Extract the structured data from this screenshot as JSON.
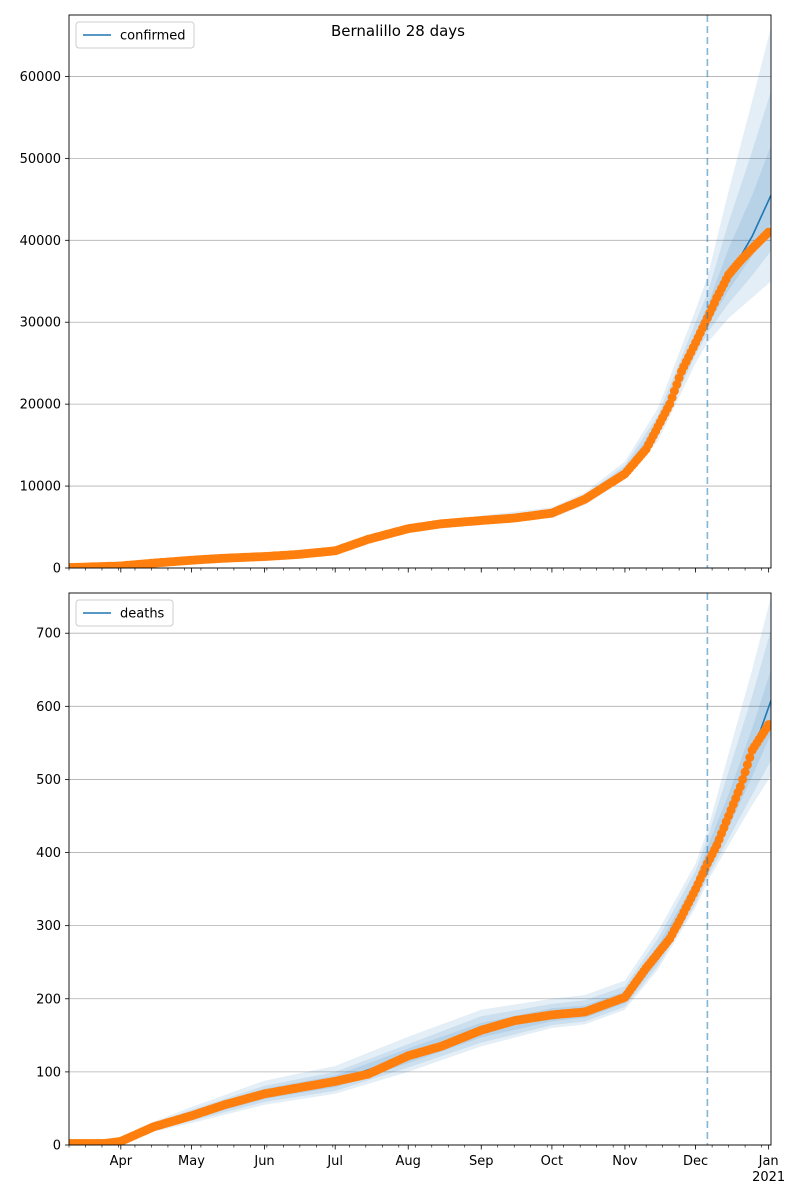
{
  "figure": {
    "title": "Bernalillo 28 days"
  },
  "chart_data": [
    {
      "type": "line",
      "legend": "confirmed",
      "legend_position": "top-left",
      "grid": "y",
      "ylim": [
        0,
        67500
      ],
      "yticks": [
        0,
        10000,
        20000,
        30000,
        40000,
        50000,
        60000
      ],
      "xticks": [
        {
          "date": "2020-04-01",
          "label": "Apr"
        },
        {
          "date": "2020-05-01",
          "label": "May"
        },
        {
          "date": "2020-06-01",
          "label": "Jun"
        },
        {
          "date": "2020-07-01",
          "label": "Jul"
        },
        {
          "date": "2020-08-01",
          "label": "Aug"
        },
        {
          "date": "2020-09-01",
          "label": "Sep"
        },
        {
          "date": "2020-10-01",
          "label": "Oct"
        },
        {
          "date": "2020-11-01",
          "label": "Nov"
        },
        {
          "date": "2020-12-01",
          "label": "Dec"
        },
        {
          "date": "2021-01-01",
          "label": "Jan\n2021"
        }
      ],
      "xlim": [
        "2020-03-10",
        "2021-01-02"
      ],
      "forecast_start": "2020-12-06",
      "observed": {
        "x": [
          "2020-03-10",
          "2020-04-01",
          "2020-04-15",
          "2020-05-01",
          "2020-05-15",
          "2020-06-01",
          "2020-06-15",
          "2020-07-01",
          "2020-07-15",
          "2020-08-01",
          "2020-08-15",
          "2020-09-01",
          "2020-09-15",
          "2020-10-01",
          "2020-10-15",
          "2020-11-01",
          "2020-11-10",
          "2020-11-20",
          "2020-11-25",
          "2020-12-01",
          "2020-12-06",
          "2020-12-10",
          "2020-12-15",
          "2020-12-20",
          "2020-12-25",
          "2021-01-01"
        ],
        "y": [
          50,
          250,
          600,
          950,
          1200,
          1400,
          1650,
          2100,
          3500,
          4800,
          5400,
          5800,
          6100,
          6700,
          8400,
          11500,
          14500,
          20000,
          24000,
          27500,
          30500,
          33000,
          35800,
          37500,
          39000,
          41000
        ]
      },
      "model": {
        "x": [
          "2020-03-10",
          "2020-04-01",
          "2020-05-01",
          "2020-06-01",
          "2020-07-01",
          "2020-07-15",
          "2020-08-01",
          "2020-09-01",
          "2020-10-01",
          "2020-10-15",
          "2020-11-01",
          "2020-11-15",
          "2020-12-01",
          "2020-12-06",
          "2020-12-15",
          "2020-12-25",
          "2021-01-02"
        ],
        "y": [
          50,
          250,
          950,
          1400,
          2100,
          3500,
          4800,
          5800,
          6700,
          8400,
          11700,
          17000,
          27500,
          30500,
          35500,
          40500,
          45500
        ]
      },
      "bands": [
        {
          "lower": [
            0,
            200,
            850,
            1250,
            1900,
            3200,
            4400,
            5300,
            6100,
            7700,
            10800,
            15500,
            25000,
            27500,
            30500,
            33000,
            35000
          ],
          "upper": [
            100,
            320,
            1100,
            1600,
            2400,
            3900,
            5300,
            6400,
            7400,
            9200,
            13000,
            19500,
            31500,
            35500,
            46000,
            57000,
            66000
          ]
        },
        {
          "lower": [
            10,
            220,
            890,
            1310,
            1990,
            3330,
            4560,
            5480,
            6330,
            7980,
            11170,
            16100,
            26000,
            28700,
            32300,
            35700,
            38700
          ],
          "upper": [
            80,
            290,
            1030,
            1520,
            2280,
            3760,
            5140,
            6190,
            7150,
            8910,
            12540,
            18620,
            30000,
            33500,
            42200,
            50900,
            58200
          ]
        },
        {
          "lower": [
            25,
            235,
            920,
            1355,
            2040,
            3410,
            4670,
            5640,
            6510,
            8180,
            11420,
            16600,
            26800,
            29600,
            33900,
            38100,
            42100
          ],
          "upper": [
            65,
            270,
            990,
            1460,
            2180,
            3610,
            4940,
            5970,
            6900,
            8630,
            12100,
            17800,
            28700,
            32000,
            39000,
            45500,
            51600
          ]
        }
      ]
    },
    {
      "type": "line",
      "legend": "deaths",
      "legend_position": "top-left",
      "grid": "y",
      "ylim": [
        0,
        755
      ],
      "yticks": [
        0,
        100,
        200,
        300,
        400,
        500,
        600,
        700
      ],
      "xticks": [
        {
          "date": "2020-04-01",
          "label": "Apr"
        },
        {
          "date": "2020-05-01",
          "label": "May"
        },
        {
          "date": "2020-06-01",
          "label": "Jun"
        },
        {
          "date": "2020-07-01",
          "label": "Jul"
        },
        {
          "date": "2020-08-01",
          "label": "Aug"
        },
        {
          "date": "2020-09-01",
          "label": "Sep"
        },
        {
          "date": "2020-10-01",
          "label": "Oct"
        },
        {
          "date": "2020-11-01",
          "label": "Nov"
        },
        {
          "date": "2020-12-01",
          "label": "Dec"
        },
        {
          "date": "2021-01-01",
          "label": "Jan\n2021"
        }
      ],
      "xlim": [
        "2020-03-10",
        "2021-01-02"
      ],
      "forecast_start": "2020-12-06",
      "observed": {
        "x": [
          "2020-03-10",
          "2020-03-25",
          "2020-04-01",
          "2020-04-15",
          "2020-05-01",
          "2020-05-15",
          "2020-06-01",
          "2020-06-15",
          "2020-07-01",
          "2020-07-15",
          "2020-08-01",
          "2020-08-15",
          "2020-09-01",
          "2020-09-15",
          "2020-10-01",
          "2020-10-15",
          "2020-11-01",
          "2020-11-10",
          "2020-11-20",
          "2020-11-25",
          "2020-12-01",
          "2020-12-06",
          "2020-12-10",
          "2020-12-15",
          "2020-12-20",
          "2020-12-25",
          "2021-01-01"
        ],
        "y": [
          2,
          2,
          5,
          25,
          40,
          55,
          70,
          78,
          87,
          97,
          122,
          135,
          157,
          170,
          178,
          182,
          202,
          242,
          282,
          312,
          350,
          385,
          410,
          450,
          490,
          540,
          575
        ]
      },
      "model": {
        "x": [
          "2020-03-10",
          "2020-03-25",
          "2020-04-01",
          "2020-04-15",
          "2020-05-01",
          "2020-06-01",
          "2020-07-01",
          "2020-08-01",
          "2020-09-01",
          "2020-10-01",
          "2020-10-15",
          "2020-11-01",
          "2020-11-15",
          "2020-12-01",
          "2020-12-06",
          "2020-12-15",
          "2020-12-25",
          "2021-01-02"
        ],
        "y": [
          2,
          2,
          5,
          25,
          40,
          70,
          87,
          122,
          157,
          178,
          182,
          202,
          262,
          350,
          392,
          455,
          535,
          608
        ]
      },
      "bands": [
        {
          "lower": [
            0,
            0,
            2,
            18,
            30,
            55,
            70,
            100,
            135,
            160,
            165,
            185,
            240,
            325,
            360,
            410,
            465,
            505
          ],
          "upper": [
            6,
            6,
            10,
            32,
            52,
            88,
            108,
            148,
            185,
            200,
            205,
            225,
            292,
            385,
            430,
            535,
            650,
            750
          ]
        },
        {
          "lower": [
            1,
            1,
            3,
            20,
            33,
            59,
            74,
            106,
            140,
            164,
            169,
            189,
            245,
            330,
            366,
            419,
            479,
            526
          ],
          "upper": [
            5,
            5,
            8,
            30,
            48,
            81,
            100,
            138,
            176,
            193,
            198,
            217,
            282,
            375,
            419,
            511,
            614,
            705
          ]
        },
        {
          "lower": [
            1,
            1,
            4,
            22,
            36,
            63,
            79,
            112,
            147,
            169,
            174,
            194,
            251,
            338,
            376,
            434,
            504,
            562
          ],
          "upper": [
            4,
            4,
            7,
            28,
            45,
            77,
            95,
            132,
            167,
            187,
            191,
            210,
            273,
            362,
            408,
            480,
            570,
            650
          ]
        }
      ]
    }
  ]
}
